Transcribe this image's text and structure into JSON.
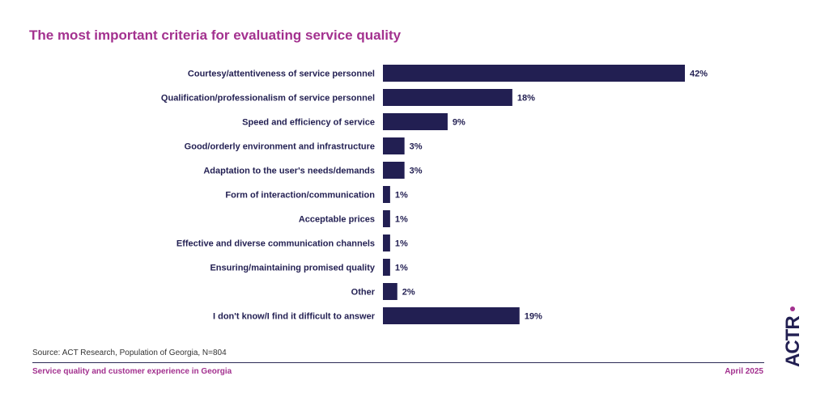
{
  "chart_data": {
    "type": "bar",
    "orientation": "horizontal",
    "title": "The most important criteria for evaluating service quality",
    "categories": [
      "Courtesy/attentiveness of service personnel",
      "Qualification/professionalism of service personnel",
      "Speed and efficiency of service",
      "Good/orderly environment and infrastructure",
      "Adaptation to the user's needs/demands",
      "Form of interaction/communication",
      "Acceptable prices",
      "Effective and diverse communication channels",
      "Ensuring/maintaining promised quality",
      "Other",
      "I don't know/I find it difficult to answer"
    ],
    "values": [
      42,
      18,
      9,
      3,
      3,
      1,
      1,
      1,
      1,
      2,
      19
    ],
    "value_labels": [
      "42%",
      "18%",
      "9%",
      "3%",
      "3%",
      "1%",
      "1%",
      "1%",
      "1%",
      "2%",
      "19%"
    ],
    "unit": "%",
    "xlim": [
      0,
      42
    ],
    "grid": false,
    "legend": "none",
    "colors": {
      "bar": "#221f52",
      "label": "#221f52"
    }
  },
  "source": "Source: ACT Research, Population of Georgia, N=804",
  "footer": {
    "left": "Service quality and customer experience in Georgia",
    "right": "April 2025"
  },
  "logo": {
    "text": "ACT R",
    "icon": "act-logo-icon",
    "colors": {
      "primary": "#221f52",
      "accent": "#a3318f"
    }
  },
  "colors": {
    "title": "#a3318f",
    "footer_text": "#a3318f",
    "rule": "#2b2a55"
  }
}
